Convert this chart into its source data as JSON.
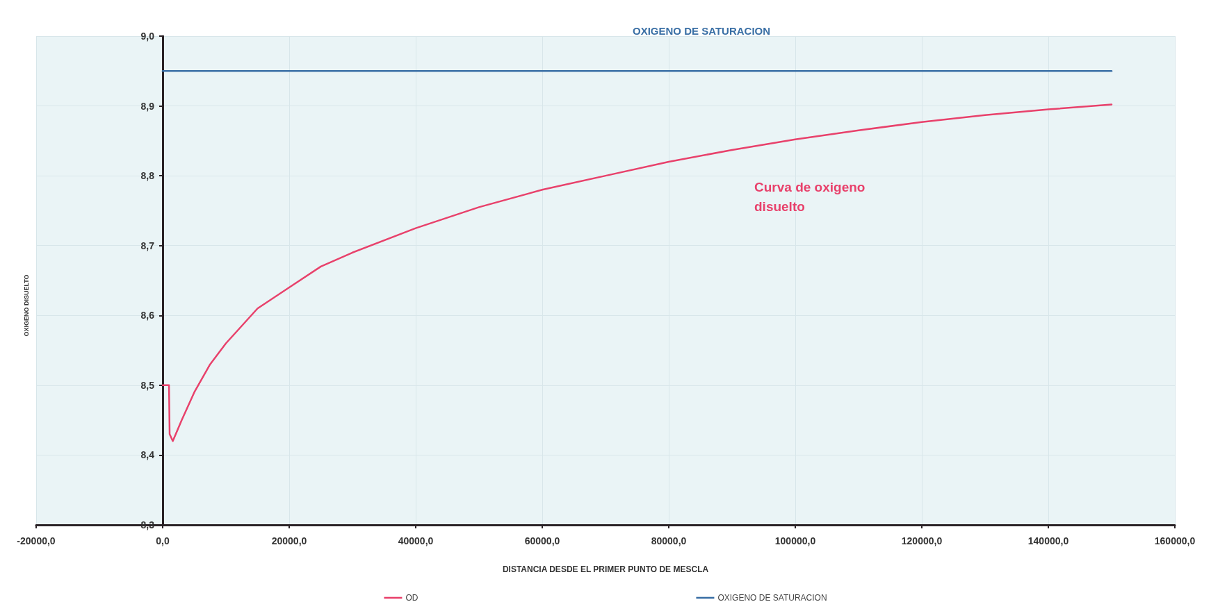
{
  "chart_data": {
    "type": "line",
    "xlabel": "DISTANCIA DESDE EL PRIMER PUNTO DE MESCLA",
    "ylabel": "OXIGENO DISUELTO",
    "xlim": [
      -20000,
      160000
    ],
    "xticks": [
      {
        "value": -20000,
        "label": "-20000,0"
      },
      {
        "value": 0,
        "label": "0,0"
      },
      {
        "value": 20000,
        "label": "20000,0"
      },
      {
        "value": 40000,
        "label": "40000,0"
      },
      {
        "value": 60000,
        "label": "60000,0"
      },
      {
        "value": 80000,
        "label": "80000,0"
      },
      {
        "value": 100000,
        "label": "100000,0"
      },
      {
        "value": 120000,
        "label": "120000,0"
      },
      {
        "value": 140000,
        "label": "140000,0"
      },
      {
        "value": 160000,
        "label": "160000,0"
      }
    ],
    "ylim": [
      8.3,
      9.0
    ],
    "yticks": [
      {
        "value": 8.3,
        "label": "8,3"
      },
      {
        "value": 8.4,
        "label": "8,4"
      },
      {
        "value": 8.5,
        "label": "8,5"
      },
      {
        "value": 8.6,
        "label": "8,6"
      },
      {
        "value": 8.7,
        "label": "8,7"
      },
      {
        "value": 8.8,
        "label": "8,8"
      },
      {
        "value": 8.9,
        "label": "8,9"
      },
      {
        "value": 9.0,
        "label": "9,0"
      }
    ],
    "series": [
      {
        "name": "OD",
        "color": "#e8416b",
        "x": [
          0,
          1000,
          1100,
          1600,
          3000,
          5000,
          7500,
          10000,
          15000,
          20000,
          25000,
          30000,
          40000,
          50000,
          60000,
          70000,
          80000,
          90000,
          100000,
          110000,
          120000,
          130000,
          140000,
          150000
        ],
        "values": [
          8.5,
          8.5,
          8.43,
          8.42,
          8.45,
          8.49,
          8.53,
          8.56,
          8.61,
          8.64,
          8.67,
          8.69,
          8.725,
          8.755,
          8.78,
          8.8,
          8.82,
          8.837,
          8.852,
          8.865,
          8.877,
          8.887,
          8.895,
          8.902
        ]
      },
      {
        "name": "OXIGENO DE SATURACION",
        "color": "#3a6fa5",
        "x": [
          0,
          150000
        ],
        "values": [
          8.95,
          8.95
        ]
      }
    ],
    "annotations": [
      "Curva de oxigeno disuelto",
      "OXIGENO DE SATURACION"
    ],
    "grid": true,
    "legend": "bottom",
    "marker": "none",
    "line_style": "solid"
  }
}
